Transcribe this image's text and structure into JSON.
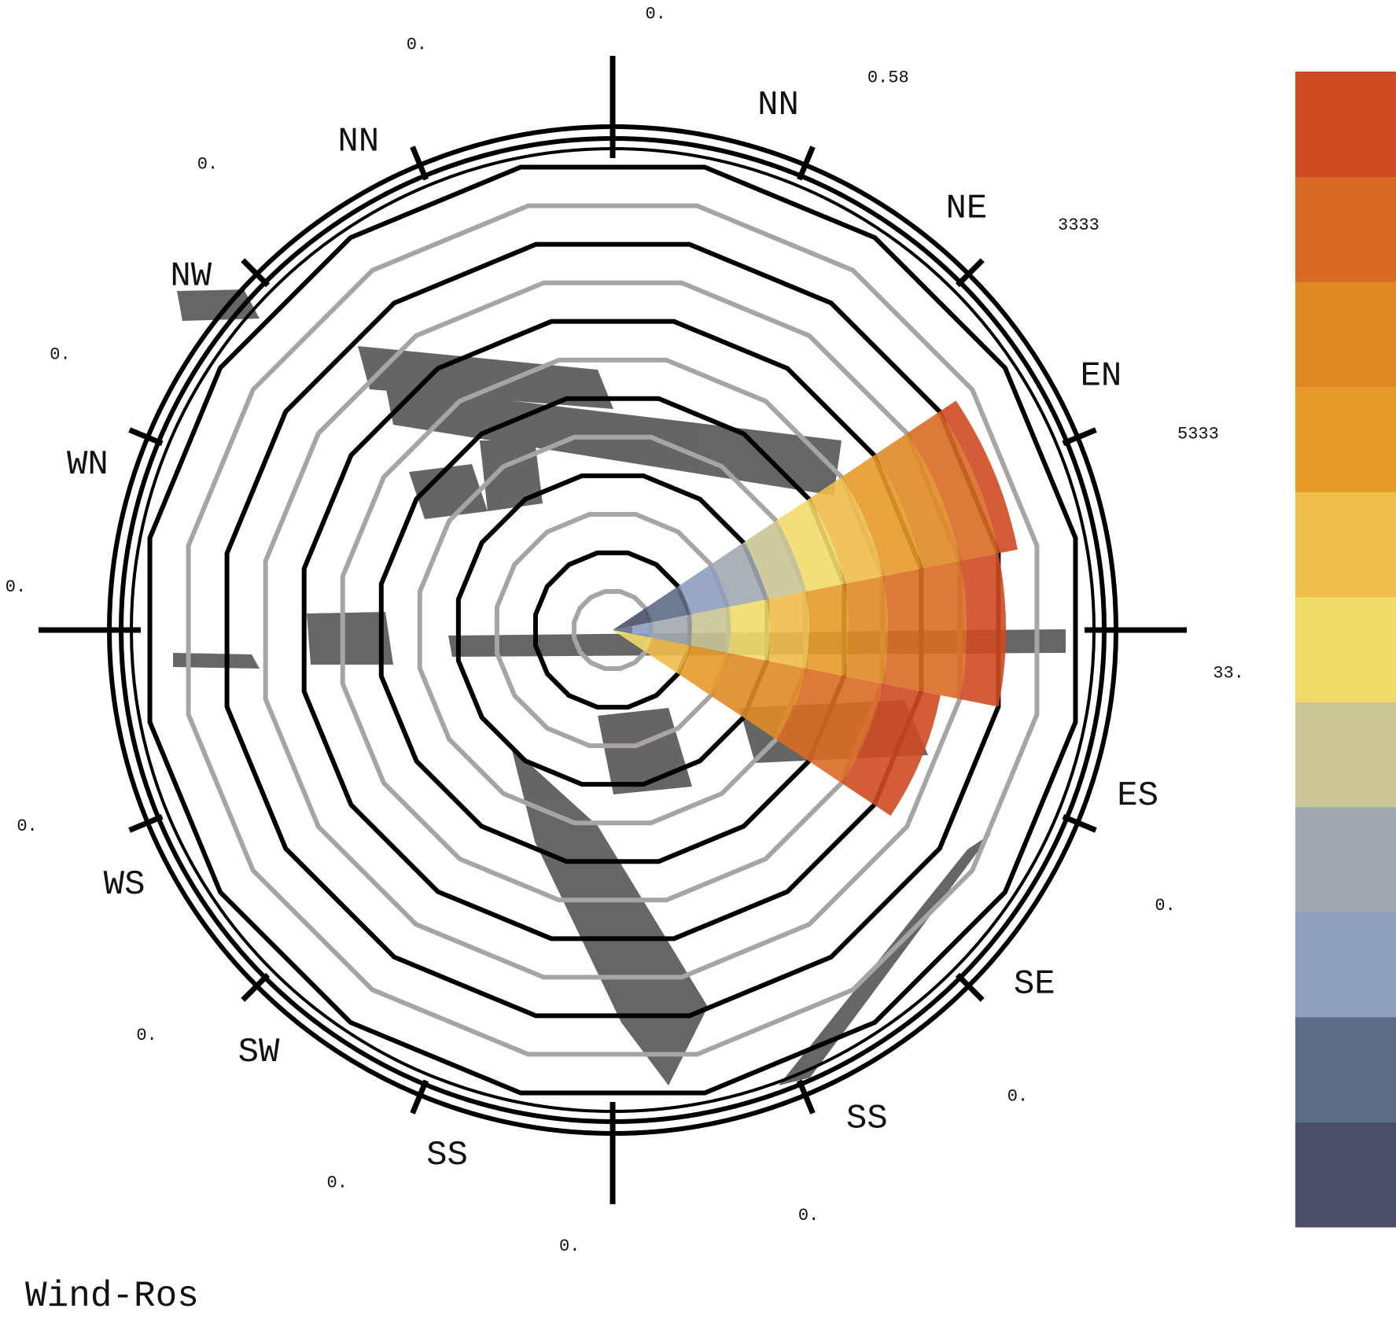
{
  "chart_data": {
    "type": "windrose",
    "title": "Wind-Ros",
    "directions": [
      null,
      "NN",
      "NE",
      "EN",
      null,
      "ES",
      "SE",
      "SS",
      null,
      "SS",
      "SW",
      "WS",
      null,
      "WN",
      "NW",
      "NN"
    ],
    "total_labels": [
      "0.",
      "0.58",
      "3333",
      "5333",
      "33.",
      "0.",
      "0.",
      "0.",
      "0.",
      "0.",
      "0.",
      "0.",
      "0.",
      "0.",
      "0.",
      "0."
    ],
    "rlim": [
      0,
      12
    ],
    "rticks": [
      1,
      2,
      3,
      4,
      5,
      6,
      7,
      8,
      9,
      10,
      11,
      12
    ],
    "grid": true,
    "series": [
      {
        "color": "#4a5068",
        "values": [
          0,
          0,
          0,
          1,
          0,
          0,
          0,
          0,
          0,
          0,
          0,
          0,
          0,
          0,
          0,
          0
        ]
      },
      {
        "color": "#5e6a86",
        "values": [
          0,
          0,
          0,
          1,
          0.5,
          0,
          0,
          0,
          0,
          0,
          0,
          0,
          0,
          0,
          0,
          0
        ]
      },
      {
        "color": "#8e9fc0",
        "values": [
          0,
          0,
          0,
          1,
          0.5,
          0,
          0,
          0,
          0,
          0,
          0,
          0,
          0,
          0,
          0,
          0
        ]
      },
      {
        "color": "#a2a8b0",
        "values": [
          0,
          0,
          0,
          1,
          1,
          0,
          0,
          0,
          0,
          0,
          0,
          0,
          0,
          0,
          0,
          0
        ]
      },
      {
        "color": "#c9c595",
        "values": [
          0,
          0,
          0,
          1,
          1,
          0,
          0,
          0,
          0,
          0,
          0,
          0,
          0,
          0,
          0,
          0
        ]
      },
      {
        "color": "#f2da6a",
        "values": [
          0,
          0,
          0,
          1,
          1,
          1,
          0,
          0,
          0,
          0,
          0,
          0,
          0,
          0,
          0,
          0
        ]
      },
      {
        "color": "#efbd4a",
        "values": [
          0,
          0,
          0,
          1,
          1,
          1,
          0,
          0,
          0,
          0,
          0,
          0,
          0,
          0,
          0,
          0
        ]
      },
      {
        "color": "#e59a2a",
        "values": [
          0,
          0,
          0,
          1,
          1,
          1,
          0,
          0,
          0,
          0,
          0,
          0,
          0,
          0,
          0,
          0
        ]
      },
      {
        "color": "#e08a25",
        "values": [
          0,
          0,
          0,
          1,
          1,
          2,
          0,
          0,
          0,
          0,
          0,
          0,
          0,
          0,
          0,
          0
        ]
      },
      {
        "color": "#d96a24",
        "values": [
          0,
          0,
          0,
          1,
          2,
          2,
          0,
          0,
          0,
          0,
          0,
          0,
          0,
          0,
          0,
          0
        ]
      },
      {
        "color": "#cf4a23",
        "values": [
          0,
          0,
          0,
          0.5,
          1,
          1.5,
          0,
          0,
          0,
          0,
          0,
          0,
          0,
          0,
          0,
          0
        ]
      }
    ]
  }
}
